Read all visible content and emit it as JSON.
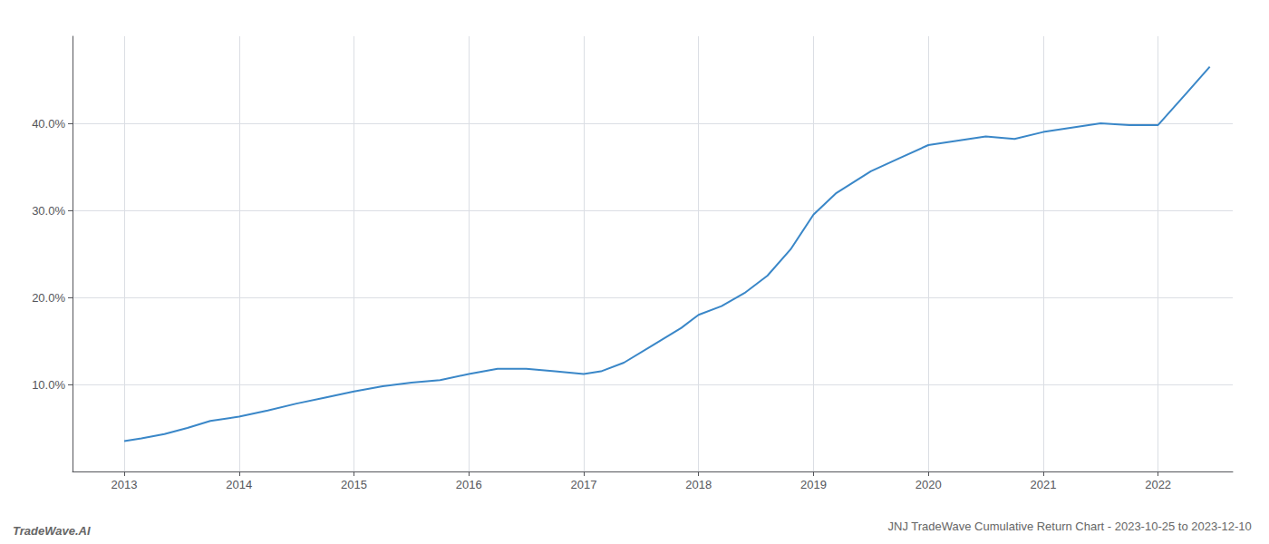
{
  "chart_data": {
    "type": "line",
    "title": "JNJ TradeWave Cumulative Return Chart - 2023-10-25 to 2023-12-10",
    "annotations": [
      "TradeWave.AI"
    ],
    "x": [
      2013.0,
      2013.15,
      2013.35,
      2013.55,
      2013.75,
      2014.0,
      2014.25,
      2014.5,
      2014.75,
      2015.0,
      2015.25,
      2015.5,
      2015.75,
      2016.0,
      2016.25,
      2016.5,
      2016.75,
      2017.0,
      2017.15,
      2017.35,
      2017.6,
      2017.85,
      2018.0,
      2018.2,
      2018.4,
      2018.6,
      2018.8,
      2019.0,
      2019.2,
      2019.5,
      2019.75,
      2020.0,
      2020.25,
      2020.5,
      2020.75,
      2021.0,
      2021.25,
      2021.5,
      2021.75,
      2022.0,
      2022.25,
      2022.45
    ],
    "values": [
      3.5,
      3.8,
      4.3,
      5.0,
      5.8,
      6.3,
      7.0,
      7.8,
      8.5,
      9.2,
      9.8,
      10.2,
      10.5,
      11.2,
      11.8,
      11.8,
      11.5,
      11.2,
      11.5,
      12.5,
      14.5,
      16.5,
      18.0,
      19.0,
      20.5,
      22.5,
      25.5,
      29.5,
      32.0,
      34.5,
      36.0,
      37.5,
      38.0,
      38.5,
      38.2,
      39.0,
      39.5,
      40.0,
      39.8,
      39.8,
      43.5,
      46.5
    ],
    "color": "#3a87c8",
    "xlim": [
      2012.55,
      2022.65
    ],
    "xticks": [
      2013,
      2014,
      2015,
      2016,
      2017,
      2018,
      2019,
      2020,
      2021,
      2022
    ],
    "ylim": [
      0,
      50
    ],
    "yticks": [
      {
        "value": 10.0,
        "label": "10.0%"
      },
      {
        "value": 20.0,
        "label": "20.0%"
      },
      {
        "value": 30.0,
        "label": "30.0%"
      },
      {
        "value": 40.0,
        "label": "40.0%"
      }
    ],
    "grid": true
  }
}
